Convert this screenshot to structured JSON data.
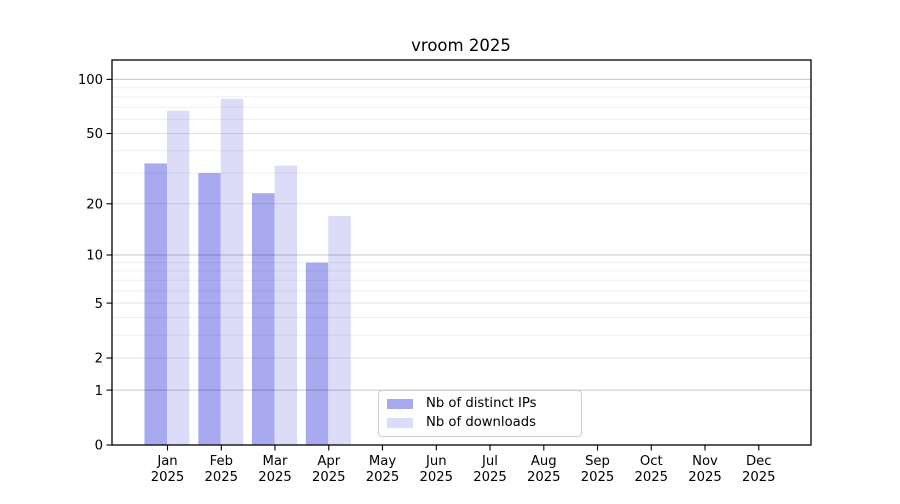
{
  "chart_data": {
    "type": "bar",
    "title": "vroom 2025",
    "x_categories": [
      "Jan",
      "Feb",
      "Mar",
      "Apr",
      "May",
      "Jun",
      "Jul",
      "Aug",
      "Sep",
      "Oct",
      "Nov",
      "Dec"
    ],
    "x_year_label": "2025",
    "series": [
      {
        "name": "Nb of distinct IPs",
        "color": "#a9a9f0",
        "values": [
          34,
          30,
          23,
          9,
          null,
          null,
          null,
          null,
          null,
          null,
          null,
          null
        ]
      },
      {
        "name": "Nb of downloads",
        "color": "#dcdcf8",
        "values": [
          67,
          78,
          33,
          17,
          null,
          null,
          null,
          null,
          null,
          null,
          null,
          null
        ]
      }
    ],
    "y_scale": "log1p",
    "ylim": [
      0,
      128
    ],
    "y_ticks": [
      0,
      1,
      2,
      5,
      10,
      20,
      50,
      100
    ],
    "y_minor_gridlines": [
      3,
      4,
      6,
      7,
      8,
      9,
      30,
      40,
      60,
      70,
      80,
      90
    ],
    "grid": true,
    "legend_position": "bottom-center-inside",
    "colors": {
      "axis": "#000000",
      "grid_decade": "#c7c7c7",
      "grid_major": "#e4e4e4",
      "grid_minor": "#efefef",
      "plot_background": "#ffffff"
    }
  }
}
